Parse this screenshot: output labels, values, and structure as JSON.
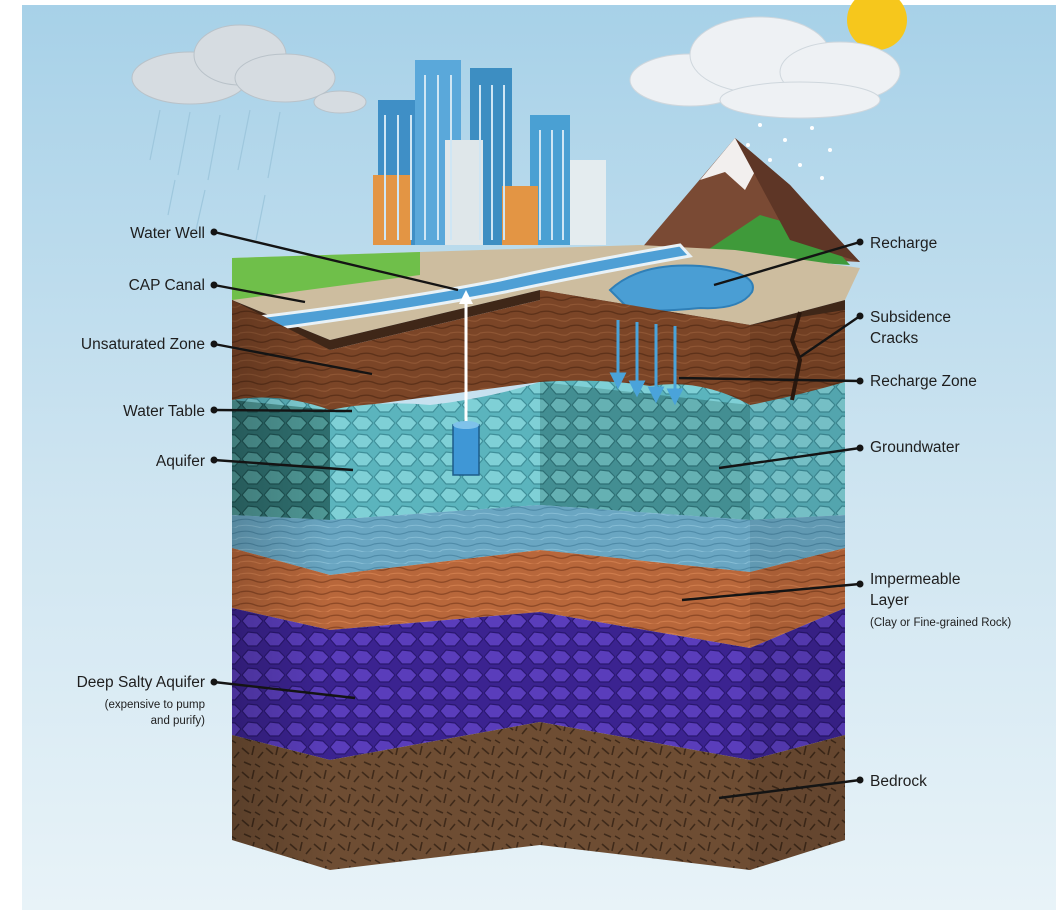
{
  "labels": {
    "water_well": "Water Well",
    "cap_canal": "CAP Canal",
    "unsaturated_zone": "Unsaturated Zone",
    "water_table": "Water Table",
    "aquifer": "Aquifer",
    "deep_salty_aquifer": "Deep Salty Aquifer",
    "deep_salty_note_line1": "(expensive to pump",
    "deep_salty_note_line2": "and purify)",
    "recharge": "Recharge",
    "subsidence_cracks_line1": "Subsidence",
    "subsidence_cracks_line2": "Cracks",
    "recharge_zone": "Recharge Zone",
    "groundwater": "Groundwater",
    "impermeable_layer_line1": "Impermeable",
    "impermeable_layer_line2": "Layer",
    "impermeable_layer_note": "(Clay or Fine-grained Rock)",
    "bedrock": "Bedrock"
  },
  "colors": {
    "sky_top": "#a9d3ea",
    "sky_bottom": "#e6f2f8",
    "surface": "#c9b99d",
    "unsaturated_zone": "#7a4527",
    "aquifer": "#5bb7bf",
    "groundwater_band": "#6fa8c4",
    "impermeable_layer": "#b9683c",
    "deep_salty_aquifer": "#4f2fa3",
    "bedrock": "#6f4e33",
    "canal_water": "#4f9fd6",
    "mountain": "#7a4a34",
    "grass": "#5fae3f",
    "leader_line": "#141414"
  }
}
